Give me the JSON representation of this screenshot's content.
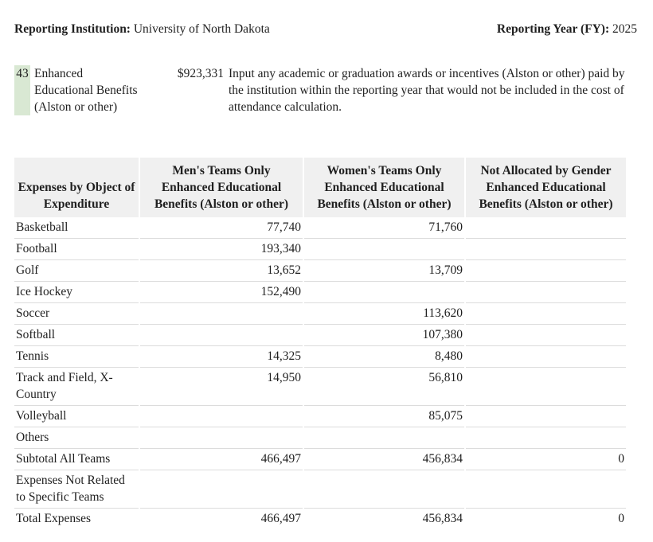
{
  "top_bar": {
    "institution_label": "Reporting Institution:",
    "institution_value": "University of North Dakota",
    "year_label": "Reporting Year (FY):",
    "year_value": "2025"
  },
  "question": {
    "number": "43",
    "label": "Enhanced Educational Benefits (Alston or other)",
    "value": "$923,331",
    "description": "Input any academic or graduation awards or incentives (Alston or other) paid by the institution within the reporting year that would not be included in the cost of attendance calculation.",
    "highlight_color": "#d9e8d3"
  },
  "table": {
    "headers": {
      "expenses": "Expenses by Object of\nExpenditure",
      "men": "Men's Teams Only\nEnhanced Educational\nBenefits (Alston or other)",
      "women": "Women's Teams Only\nEnhanced Educational\nBenefits (Alston or other)",
      "not_allocated": "Not Allocated by Gender\nEnhanced Educational\nBenefits (Alston or other)"
    },
    "rows": [
      {
        "label": "Basketball",
        "men": "77,740",
        "women": "71,760",
        "na": ""
      },
      {
        "label": "Football",
        "men": "193,340",
        "women": "",
        "na": ""
      },
      {
        "label": "Golf",
        "men": "13,652",
        "women": "13,709",
        "na": ""
      },
      {
        "label": "Ice Hockey",
        "men": "152,490",
        "women": "",
        "na": ""
      },
      {
        "label": "Soccer",
        "men": "",
        "women": "113,620",
        "na": ""
      },
      {
        "label": "Softball",
        "men": "",
        "women": "107,380",
        "na": ""
      },
      {
        "label": "Tennis",
        "men": "14,325",
        "women": "8,480",
        "na": ""
      },
      {
        "label": "Track and Field, X-Country",
        "men": "14,950",
        "women": "56,810",
        "na": ""
      },
      {
        "label": "Volleyball",
        "men": "",
        "women": "85,075",
        "na": ""
      },
      {
        "label": "Others",
        "men": "",
        "women": "",
        "na": ""
      },
      {
        "label": "Subtotal All Teams",
        "men": "466,497",
        "women": "456,834",
        "na": "0"
      },
      {
        "label": "Expenses Not Related to Specific Teams",
        "men": "",
        "women": "",
        "na": ""
      },
      {
        "label": "Total Expenses",
        "men": "466,497",
        "women": "456,834",
        "na": "0"
      }
    ]
  },
  "colors": {
    "highlight_green": "#d9e8d3",
    "header_gray": "#f0f0f0",
    "row_border": "#dcdcdc",
    "text": "#1f1f1f"
  }
}
